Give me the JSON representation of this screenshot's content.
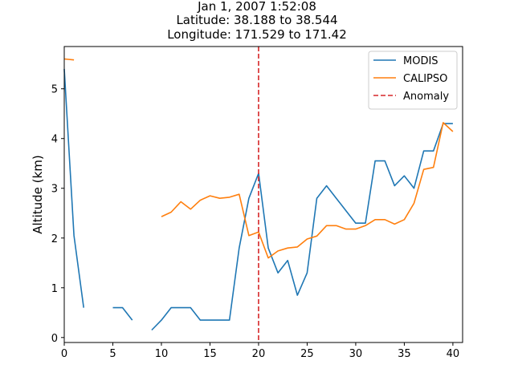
{
  "chart_data": {
    "type": "line",
    "title_lines": [
      "Jan 1, 2007 1:52:08",
      "Latitude: 38.188 to 38.544",
      "Longitude: 171.529 to 171.42"
    ],
    "xlabel": "",
    "ylabel": "Altitude (km)",
    "xlim": [
      0,
      41
    ],
    "ylim": [
      -0.1,
      5.85
    ],
    "xticks": [
      0,
      5,
      10,
      15,
      20,
      25,
      30,
      35,
      40
    ],
    "yticks": [
      0,
      1,
      2,
      3,
      4,
      5
    ],
    "grid": false,
    "legend_placement": "top-right",
    "series": [
      {
        "name": "MODIS",
        "color": "#1f77b4",
        "style": "solid",
        "x": [
          0,
          1,
          2,
          3,
          4,
          5,
          6,
          7,
          8,
          9,
          10,
          11,
          12,
          13,
          14,
          15,
          16,
          17,
          18,
          19,
          20,
          21,
          22,
          23,
          24,
          25,
          26,
          27,
          28,
          29,
          30,
          31,
          32,
          33,
          34,
          35,
          36,
          37,
          38,
          39,
          40
        ],
        "y": [
          5.4,
          2.05,
          0.6,
          null,
          null,
          0.6,
          0.6,
          0.35,
          null,
          0.15,
          0.35,
          0.6,
          0.6,
          0.6,
          0.35,
          0.35,
          0.35,
          0.35,
          1.8,
          2.8,
          3.3,
          1.8,
          1.3,
          1.55,
          0.85,
          1.3,
          2.8,
          3.05,
          2.8,
          2.55,
          2.3,
          2.3,
          3.55,
          3.55,
          3.05,
          3.25,
          3.0,
          3.75,
          3.75,
          4.3,
          4.3
        ]
      },
      {
        "name": "CALIPSO",
        "color": "#ff7f0e",
        "style": "solid",
        "x": [
          0,
          1,
          2,
          3,
          4,
          5,
          6,
          7,
          8,
          9,
          10,
          11,
          12,
          13,
          14,
          15,
          16,
          17,
          18,
          19,
          20,
          21,
          22,
          23,
          24,
          25,
          26,
          27,
          28,
          29,
          30,
          31,
          32,
          33,
          34,
          35,
          36,
          37,
          38,
          39,
          40
        ],
        "y": [
          5.6,
          5.58,
          null,
          null,
          null,
          null,
          null,
          null,
          null,
          null,
          2.43,
          2.52,
          2.73,
          2.58,
          2.76,
          2.85,
          2.8,
          2.82,
          2.88,
          2.05,
          2.12,
          1.6,
          1.74,
          1.8,
          1.82,
          1.98,
          2.04,
          2.25,
          2.25,
          2.18,
          2.18,
          2.25,
          2.37,
          2.37,
          2.28,
          2.37,
          2.7,
          3.38,
          3.42,
          4.32,
          4.14
        ]
      }
    ],
    "vlines": [
      {
        "name": "Anomaly",
        "x": 20,
        "color": "#d62728",
        "style": "dashed"
      }
    ]
  }
}
